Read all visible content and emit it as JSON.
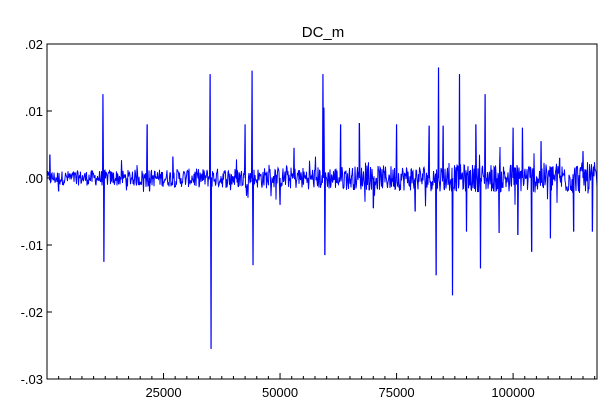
{
  "chart_data": {
    "type": "line",
    "title": "DC_m",
    "xlabel": "",
    "ylabel": "",
    "xlim": [
      1,
      118000
    ],
    "ylim": [
      -0.03,
      0.02
    ],
    "x_ticks": [
      25000,
      50000,
      75000,
      100000
    ],
    "x_tick_labels": [
      "25000",
      "50000",
      "75000",
      "100000"
    ],
    "y_ticks": [
      -0.03,
      -0.02,
      -0.01,
      0.0,
      0.01,
      0.02
    ],
    "y_tick_labels": [
      "-.03",
      "-.02",
      "-.01",
      ".00",
      ".01",
      ".02"
    ],
    "grid": false,
    "line_color": "#0000ff",
    "baseline_noise_amplitude": 0.0015,
    "spikes": [
      {
        "x": 600,
        "y": 0.0035
      },
      {
        "x": 2500,
        "y": -0.002
      },
      {
        "x": 12000,
        "y": 0.0125
      },
      {
        "x": 12200,
        "y": -0.0125
      },
      {
        "x": 21500,
        "y": 0.008
      },
      {
        "x": 22000,
        "y": -0.002
      },
      {
        "x": 27000,
        "y": 0.0032
      },
      {
        "x": 35000,
        "y": 0.0155
      },
      {
        "x": 35200,
        "y": -0.0255
      },
      {
        "x": 42500,
        "y": 0.008
      },
      {
        "x": 44000,
        "y": 0.016
      },
      {
        "x": 44200,
        "y": -0.013
      },
      {
        "x": 50000,
        "y": -0.004
      },
      {
        "x": 53000,
        "y": 0.0045
      },
      {
        "x": 59200,
        "y": 0.0155
      },
      {
        "x": 59400,
        "y": 0.0105
      },
      {
        "x": 59600,
        "y": -0.0115
      },
      {
        "x": 63000,
        "y": 0.008
      },
      {
        "x": 67000,
        "y": 0.0082
      },
      {
        "x": 70000,
        "y": -0.0045
      },
      {
        "x": 75000,
        "y": 0.008
      },
      {
        "x": 79000,
        "y": -0.005
      },
      {
        "x": 82000,
        "y": 0.0078
      },
      {
        "x": 83500,
        "y": -0.0145
      },
      {
        "x": 84000,
        "y": 0.0165
      },
      {
        "x": 85000,
        "y": 0.0078
      },
      {
        "x": 87000,
        "y": -0.0175
      },
      {
        "x": 88500,
        "y": 0.0155
      },
      {
        "x": 90000,
        "y": -0.008
      },
      {
        "x": 92000,
        "y": 0.008
      },
      {
        "x": 93000,
        "y": -0.0135
      },
      {
        "x": 94000,
        "y": 0.0125
      },
      {
        "x": 97000,
        "y": -0.0082
      },
      {
        "x": 100000,
        "y": 0.0075
      },
      {
        "x": 101000,
        "y": -0.0085
      },
      {
        "x": 102000,
        "y": 0.0075
      },
      {
        "x": 104000,
        "y": -0.011
      },
      {
        "x": 106000,
        "y": 0.0055
      },
      {
        "x": 108000,
        "y": -0.009
      },
      {
        "x": 110000,
        "y": 0.003
      },
      {
        "x": 113000,
        "y": -0.008
      },
      {
        "x": 115000,
        "y": 0.004
      },
      {
        "x": 117000,
        "y": -0.008
      }
    ]
  }
}
